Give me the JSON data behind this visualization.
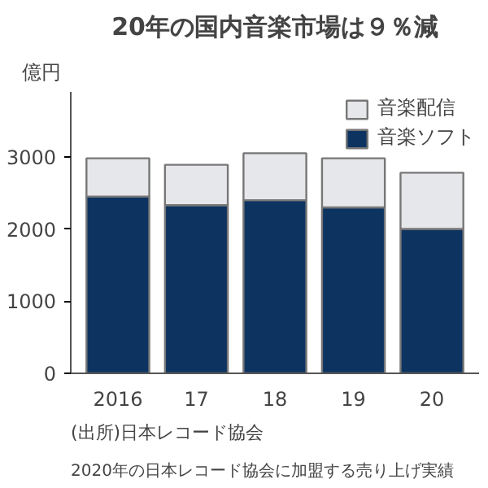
{
  "chart_data": {
    "type": "bar",
    "stacked": true,
    "title": "20年の国内音楽市場は９％減",
    "ylabel": "億円",
    "categories": [
      "2016",
      "17",
      "18",
      "19",
      "20"
    ],
    "series": [
      {
        "name": "音楽ソフト",
        "color": "#0d3461",
        "values": [
          2450,
          2330,
          2400,
          2300,
          2000
        ]
      },
      {
        "name": "音楽配信",
        "color": "#e6e7ea",
        "values": [
          530,
          560,
          650,
          680,
          780
        ]
      }
    ],
    "ylim": [
      0,
      3900
    ],
    "yticks": [
      0,
      1000,
      2000,
      3000
    ],
    "grid": false,
    "legend": "top right",
    "annotations": [
      "(出所)日本レコード協会",
      "2020年の日本レコード協会に加盟する売り上げ実績"
    ]
  }
}
